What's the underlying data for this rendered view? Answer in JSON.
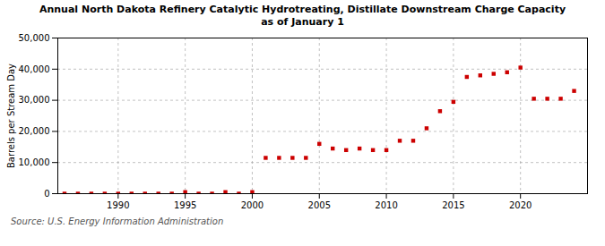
{
  "chart_data": {
    "type": "scatter",
    "title": "Annual North Dakota Refinery Catalytic Hydrotreating, Distillate Downstream Charge Capacity\nas of January 1",
    "ylabel": "Barrels per Stream Day",
    "source": "Source: U.S. Energy Information Administration",
    "x": [
      1986,
      1987,
      1988,
      1989,
      1990,
      1991,
      1992,
      1993,
      1994,
      1995,
      1996,
      1997,
      1998,
      1999,
      2000,
      2001,
      2002,
      2003,
      2004,
      2005,
      2006,
      2007,
      2008,
      2009,
      2010,
      2011,
      2012,
      2013,
      2014,
      2015,
      2016,
      2017,
      2018,
      2019,
      2020,
      2021,
      2022,
      2023,
      2024
    ],
    "values": [
      0,
      0,
      0,
      0,
      0,
      0,
      0,
      0,
      0,
      500,
      0,
      0,
      500,
      0,
      500,
      11500,
      11500,
      11500,
      11500,
      16000,
      14500,
      14000,
      14500,
      14000,
      14000,
      17000,
      17000,
      21000,
      26500,
      29500,
      37500,
      38000,
      38500,
      39000,
      40500,
      30500,
      30500,
      30500,
      33000
    ],
    "color": "#cc0000",
    "marker": "square",
    "xlim": [
      1985.5,
      2025
    ],
    "xticks": [
      1990,
      1995,
      2000,
      2005,
      2010,
      2015,
      2020
    ],
    "ylim": [
      0,
      50000
    ],
    "yticks": [
      0,
      {
        "value": 10000,
        "label": "10,000"
      },
      {
        "value": 20000,
        "label": "20,000"
      },
      {
        "value": 30000,
        "label": "30,000"
      },
      {
        "value": 40000,
        "label": "40,000"
      },
      {
        "value": 50000,
        "label": "50,000"
      }
    ],
    "grid": true
  }
}
